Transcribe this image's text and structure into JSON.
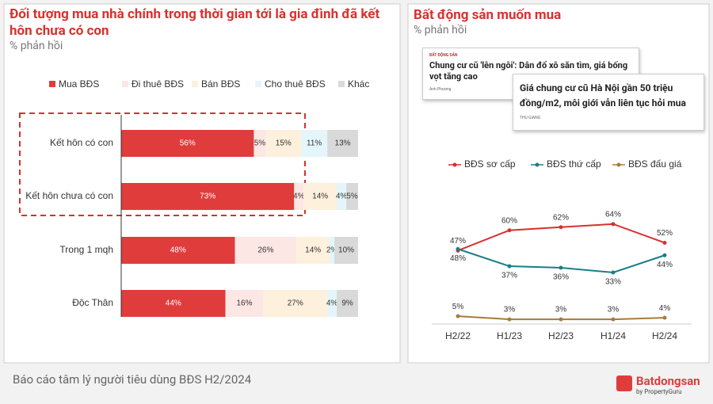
{
  "chart_data": [
    {
      "type": "stacked-bar-horizontal",
      "title": "Đối tượng mua nhà chính trong thời gian tới là gia đình đã kết hôn chưa có con",
      "subtitle": "% phản hồi",
      "categories": [
        "Kết hôn có con",
        "Kết hôn chưa có con",
        "Trong 1 mqh",
        "Độc Thân"
      ],
      "xlim": [
        0,
        100
      ],
      "series": [
        {
          "name": "Mua BĐS",
          "color": "#e03c3c",
          "values": [
            56,
            73,
            48,
            44
          ],
          "value_labels": [
            "56%",
            "73%",
            "48%",
            "44%"
          ]
        },
        {
          "name": "Đi thuê BĐS",
          "color": "#fde7e4",
          "values": [
            5,
            4,
            26,
            16
          ],
          "value_labels": [
            "5%",
            "4%",
            "26%",
            "16%"
          ]
        },
        {
          "name": "Bán BĐS",
          "color": "#fdf0dc",
          "values": [
            15,
            14,
            14,
            27
          ],
          "value_labels": [
            "15%",
            "14%",
            "14%",
            "27%"
          ]
        },
        {
          "name": "Cho thuê BĐS",
          "color": "#e4f6fb",
          "values": [
            11,
            4,
            2,
            4
          ],
          "value_labels": [
            "11%",
            "4%",
            "2%",
            "4%"
          ]
        },
        {
          "name": "Khác",
          "color": "#d9d9d9",
          "values": [
            13,
            5,
            10,
            9
          ],
          "value_labels": [
            "13%",
            "5%",
            "10%",
            "9%"
          ]
        }
      ]
    },
    {
      "type": "line",
      "title": "Bất động sản muốn mua",
      "subtitle": "% phản hồi",
      "categories": [
        "H2/22",
        "H1/23",
        "H2/23",
        "H1/24",
        "H2/24"
      ],
      "ylim": [
        0,
        70
      ],
      "series": [
        {
          "name": "BĐS sơ cấp",
          "color": "#d7312e",
          "values": [
            47,
            60,
            62,
            64,
            52
          ],
          "value_labels": [
            "47%",
            "60%",
            "62%",
            "64%",
            "52%"
          ]
        },
        {
          "name": "BĐS thứ cấp",
          "color": "#1a7f86",
          "values": [
            48,
            37,
            36,
            33,
            44
          ],
          "value_labels": [
            "48%",
            "37%",
            "36%",
            "33%",
            "44%"
          ]
        },
        {
          "name": "BĐS đấu giá",
          "color": "#a87a3c",
          "values": [
            5,
            3,
            3,
            3,
            4
          ],
          "value_labels": [
            "5%",
            "3%",
            "3%",
            "3%",
            "4%"
          ]
        }
      ]
    }
  ],
  "news": [
    {
      "tag": "BẤT ĐỘNG SẢN",
      "headline": "Chung cư cũ 'lên ngôi': Dân đổ xô săn tìm, giá bống vọt tăng cao",
      "author": "Anh Phương"
    },
    {
      "headline": "Giá chung cư cũ Hà Nội gần 50 triệu đồng/m2, môi giới vẫn liên tục hỏi mua",
      "author": "THU GIANG"
    }
  ],
  "footer": {
    "note": "Báo cáo tâm lý người tiêu dùng BĐS H2/2024",
    "logo": "Batdongsan",
    "logo_sub": "by PropertyGuru"
  }
}
